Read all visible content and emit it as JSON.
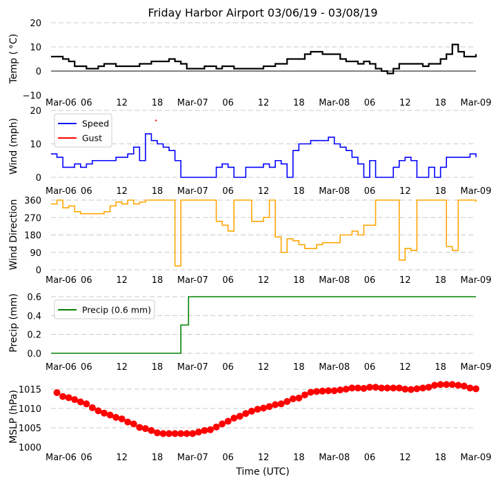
{
  "title": "Friday Harbor Airport 03/06/19 - 03/08/19",
  "xlabel": "Time (UTC)",
  "xtick_labels": [
    "Mar-06",
    "06",
    "12",
    "18",
    "Mar-07",
    "06",
    "12",
    "18",
    "Mar-08",
    "06",
    "12",
    "18",
    "Mar-09"
  ],
  "xtick_hours": [
    0,
    6,
    12,
    18,
    24,
    30,
    36,
    42,
    48,
    54,
    60,
    66,
    72
  ],
  "x_range_hours": [
    0,
    72
  ],
  "chart_data": [
    {
      "type": "line",
      "ylabel": "Temp ($^\\circ$C)",
      "ylabel_display": "Temp ( °C)",
      "ylim": [
        -10,
        20
      ],
      "yticks": [
        -10,
        0,
        10,
        20
      ],
      "ytick_labels": [
        "−10",
        "0",
        "10",
        "20"
      ],
      "grid": [
        10,
        20
      ],
      "zero_line": true,
      "legend": null,
      "series": [
        {
          "name": "Temp",
          "color": "#000000",
          "x": [
            0,
            1,
            2,
            3,
            4,
            5,
            6,
            7,
            8,
            9,
            10,
            11,
            12,
            13,
            14,
            15,
            16,
            17,
            18,
            19,
            20,
            21,
            22,
            23,
            24,
            25,
            26,
            27,
            28,
            29,
            30,
            31,
            32,
            33,
            34,
            35,
            36,
            37,
            38,
            39,
            40,
            41,
            42,
            43,
            44,
            45,
            46,
            47,
            48,
            49,
            50,
            51,
            52,
            53,
            54,
            55,
            56,
            57,
            58,
            59,
            60,
            61,
            62,
            63,
            64,
            65,
            66,
            67,
            68,
            69,
            70,
            71,
            72
          ],
          "y": [
            6,
            6,
            5,
            4,
            2,
            2,
            1,
            1,
            2,
            3,
            3,
            2,
            2,
            2,
            2,
            3,
            3,
            4,
            4,
            4,
            5,
            4,
            3,
            1,
            1,
            1,
            2,
            2,
            1,
            2,
            2,
            1,
            1,
            1,
            1,
            1,
            2,
            2,
            3,
            3,
            5,
            5,
            5,
            7,
            8,
            8,
            7,
            7,
            7,
            5,
            4,
            4,
            3,
            4,
            3,
            1,
            0,
            -1,
            1,
            3,
            3,
            3,
            3,
            2,
            3,
            3,
            5,
            7,
            11,
            8,
            6,
            6,
            7
          ]
        }
      ]
    },
    {
      "type": "line",
      "ylabel": "Wind (mph)",
      "ylim": [
        0,
        20
      ],
      "yticks": [
        0,
        10,
        20
      ],
      "ytick_labels": [
        "0",
        "10",
        "20"
      ],
      "grid": [
        0,
        10,
        20
      ],
      "legend": {
        "placement": "upper-left",
        "entries": [
          "Speed",
          "Gust"
        ]
      },
      "series": [
        {
          "name": "Speed",
          "color": "#0000ff",
          "x": [
            0,
            1,
            2,
            3,
            4,
            5,
            6,
            7,
            8,
            9,
            10,
            11,
            12,
            13,
            14,
            15,
            16,
            17,
            18,
            19,
            20,
            21,
            22,
            23,
            24,
            25,
            26,
            27,
            28,
            29,
            30,
            31,
            32,
            33,
            34,
            35,
            36,
            37,
            38,
            39,
            40,
            41,
            42,
            43,
            44,
            45,
            46,
            47,
            48,
            49,
            50,
            51,
            52,
            53,
            54,
            55,
            56,
            57,
            58,
            59,
            60,
            61,
            62,
            63,
            64,
            65,
            66,
            67,
            68,
            69,
            70,
            71,
            72
          ],
          "y": [
            7,
            6,
            3,
            3,
            4,
            3,
            4,
            5,
            5,
            5,
            5,
            6,
            6,
            7,
            9,
            5,
            13,
            11,
            10,
            9,
            8,
            5,
            0,
            0,
            0,
            0,
            0,
            0,
            3,
            4,
            3,
            0,
            0,
            3,
            3,
            3,
            4,
            3,
            5,
            4,
            0,
            8,
            10,
            10,
            11,
            11,
            11,
            12,
            10,
            9,
            8,
            6,
            4,
            0,
            5,
            0,
            0,
            0,
            3,
            5,
            6,
            5,
            0,
            0,
            3,
            0,
            3,
            6,
            6,
            6,
            6,
            7,
            6
          ]
        },
        {
          "name": "Gust",
          "color": "#ff0000",
          "x": [
            17.8
          ],
          "y": [
            17
          ]
        }
      ]
    },
    {
      "type": "line",
      "ylabel": "Wind Direction",
      "ylim": [
        0,
        360
      ],
      "yticks": [
        0,
        90,
        180,
        270,
        360
      ],
      "ytick_labels": [
        "0",
        "90",
        "180",
        "270",
        "360"
      ],
      "grid": [
        0,
        90,
        180,
        270,
        360
      ],
      "legend": null,
      "series": [
        {
          "name": "Direction",
          "color": "#ffa500",
          "x": [
            0,
            1,
            2,
            3,
            4,
            5,
            6,
            7,
            8,
            9,
            10,
            11,
            12,
            13,
            14,
            15,
            16,
            17,
            18,
            19,
            20,
            21,
            22,
            23,
            24,
            25,
            26,
            27,
            28,
            29,
            30,
            31,
            32,
            33,
            34,
            35,
            36,
            37,
            38,
            39,
            40,
            41,
            42,
            43,
            44,
            45,
            46,
            47,
            48,
            49,
            50,
            51,
            52,
            53,
            54,
            55,
            56,
            57,
            58,
            59,
            60,
            61,
            62,
            63,
            64,
            65,
            66,
            67,
            68,
            69,
            70,
            71,
            72
          ],
          "y": [
            340,
            360,
            320,
            330,
            300,
            290,
            290,
            290,
            290,
            300,
            330,
            350,
            340,
            360,
            340,
            350,
            360,
            360,
            360,
            360,
            360,
            20,
            360,
            360,
            360,
            360,
            360,
            360,
            250,
            230,
            200,
            360,
            360,
            360,
            250,
            250,
            270,
            360,
            170,
            90,
            160,
            150,
            130,
            110,
            110,
            130,
            140,
            140,
            140,
            180,
            180,
            200,
            180,
            230,
            230,
            360,
            360,
            360,
            360,
            50,
            110,
            100,
            360,
            360,
            360,
            360,
            360,
            120,
            100,
            360,
            360,
            360,
            350
          ]
        }
      ]
    },
    {
      "type": "line",
      "ylabel": "Precip (mm)",
      "ylim": [
        0,
        0.6
      ],
      "yticks": [
        0,
        0.2,
        0.4,
        0.6
      ],
      "ytick_labels": [
        "0.0",
        "0.2",
        "0.4",
        "0.6"
      ],
      "grid": [
        0,
        0.2,
        0.4,
        0.6
      ],
      "legend": {
        "placement": "upper-left",
        "entries": [
          "Precip (0.6 mm)"
        ]
      },
      "series": [
        {
          "name": "Precip (0.6 mm)",
          "color": "#008000",
          "step": true,
          "x": [
            0,
            22,
            23.3,
            72
          ],
          "y": [
            0,
            0.3,
            0.6,
            0.6
          ]
        }
      ]
    },
    {
      "type": "scatter",
      "ylabel": "MSLP (hPa)",
      "ylim": [
        1000,
        1015
      ],
      "yticks": [
        1000,
        1005,
        1010,
        1015
      ],
      "ytick_labels": [
        "1000",
        "1005",
        "1010",
        "1015"
      ],
      "grid": [
        1005,
        1010,
        1015
      ],
      "legend": null,
      "series": [
        {
          "name": "MSLP",
          "color": "#ff0000",
          "x": [
            1,
            2,
            3,
            4,
            5,
            6,
            7,
            8,
            9,
            10,
            11,
            12,
            13,
            14,
            15,
            16,
            17,
            18,
            19,
            20,
            21,
            22,
            23,
            24,
            25,
            26,
            27,
            28,
            29,
            30,
            31,
            32,
            33,
            34,
            35,
            36,
            37,
            38,
            39,
            40,
            41,
            42,
            43,
            44,
            45,
            46,
            47,
            48,
            49,
            50,
            51,
            52,
            53,
            54,
            55,
            56,
            57,
            58,
            59,
            60,
            61,
            62,
            63,
            64,
            65,
            66,
            67,
            68,
            69,
            70,
            71,
            72
          ],
          "y": [
            1014.1,
            1013.1,
            1012.8,
            1012.3,
            1011.7,
            1011.2,
            1010.2,
            1009.4,
            1008.8,
            1008.3,
            1007.7,
            1007.3,
            1006.5,
            1006,
            1005.1,
            1004.8,
            1004.3,
            1003.7,
            1003.5,
            1003.5,
            1003.5,
            1003.5,
            1003.5,
            1003.5,
            1003.9,
            1004.3,
            1004.5,
            1005.2,
            1006,
            1006.7,
            1007.5,
            1008,
            1008.7,
            1009.3,
            1009.8,
            1010.1,
            1010.5,
            1011,
            1011.2,
            1011.8,
            1012.5,
            1012.7,
            1013.5,
            1014.2,
            1014.4,
            1014.5,
            1014.6,
            1014.6,
            1014.8,
            1015,
            1015.3,
            1015.3,
            1015.2,
            1015.5,
            1015.5,
            1015.3,
            1015.3,
            1015.3,
            1015.3,
            1015,
            1014.9,
            1015.1,
            1015.3,
            1015.5,
            1016,
            1016.2,
            1016.2,
            1016.2,
            1016,
            1015.8,
            1015.3,
            1015.1
          ]
        }
      ]
    }
  ]
}
